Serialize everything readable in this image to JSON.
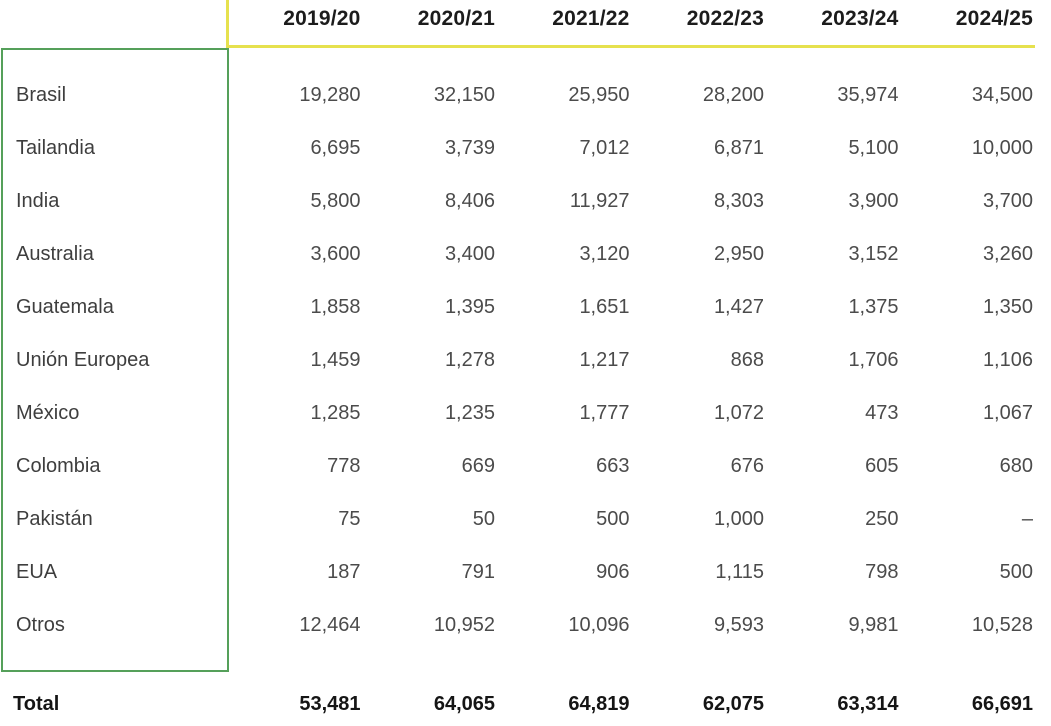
{
  "accent_colors": {
    "header_rule_yellow": "#e6e14e",
    "country_box_green": "#55a05a"
  },
  "chart_data": {
    "type": "table",
    "columns": [
      "2019/20",
      "2020/21",
      "2021/22",
      "2022/23",
      "2023/24",
      "2024/25"
    ],
    "rows": [
      {
        "label": "Brasil",
        "values": [
          "19,280",
          "32,150",
          "25,950",
          "28,200",
          "35,974",
          "34,500"
        ]
      },
      {
        "label": "Tailandia",
        "values": [
          "6,695",
          "3,739",
          "7,012",
          "6,871",
          "5,100",
          "10,000"
        ]
      },
      {
        "label": "India",
        "values": [
          "5,800",
          "8,406",
          "11,927",
          "8,303",
          "3,900",
          "3,700"
        ]
      },
      {
        "label": "Australia",
        "values": [
          "3,600",
          "3,400",
          "3,120",
          "2,950",
          "3,152",
          "3,260"
        ]
      },
      {
        "label": "Guatemala",
        "values": [
          "1,858",
          "1,395",
          "1,651",
          "1,427",
          "1,375",
          "1,350"
        ]
      },
      {
        "label": "Unión Europea",
        "values": [
          "1,459",
          "1,278",
          "1,217",
          "868",
          "1,706",
          "1,106"
        ]
      },
      {
        "label": "México",
        "values": [
          "1,285",
          "1,235",
          "1,777",
          "1,072",
          "473",
          "1,067"
        ]
      },
      {
        "label": "Colombia",
        "values": [
          "778",
          "669",
          "663",
          "676",
          "605",
          "680"
        ]
      },
      {
        "label": "Pakistán",
        "values": [
          "75",
          "50",
          "500",
          "1,000",
          "250",
          "–"
        ]
      },
      {
        "label": "EUA",
        "values": [
          "187",
          "791",
          "906",
          "1,115",
          "798",
          "500"
        ]
      },
      {
        "label": "Otros",
        "values": [
          "12,464",
          "10,952",
          "10,096",
          "9,593",
          "9,981",
          "10,528"
        ]
      }
    ],
    "total": {
      "label": "Total",
      "values": [
        "53,481",
        "64,065",
        "64,819",
        "62,075",
        "63,314",
        "66,691"
      ]
    }
  }
}
